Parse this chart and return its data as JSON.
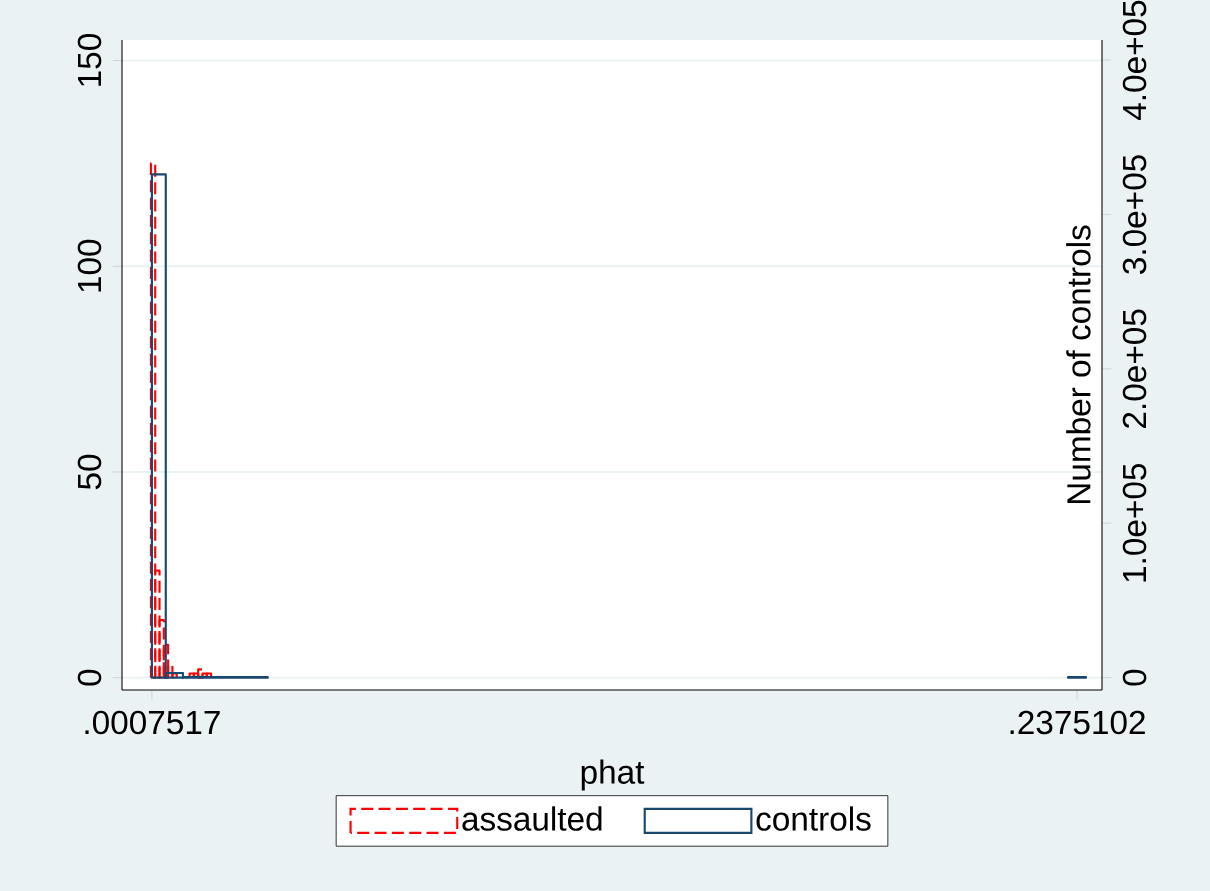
{
  "chart_data": {
    "type": "histogram",
    "xlabel": "phat",
    "y2label": "Number of controls",
    "xlim": [
      -0.0069,
      0.2439
    ],
    "xticks": [
      {
        "value": 0.0007517,
        "label": ".0007517"
      },
      {
        "value": 0.2375102,
        "label": ".2375102"
      }
    ],
    "ylim": [
      -3,
      155
    ],
    "yticks": [
      0,
      50,
      100,
      150
    ],
    "y2lim": [
      -8000,
      413000
    ],
    "y2ticks": [
      0,
      {
        "value": 100000,
        "label": "1.0e+05"
      },
      {
        "value": 200000,
        "label": "2.0e+05"
      },
      {
        "value": 300000,
        "label": "3.0e+05"
      },
      {
        "value": 400000,
        "label": "4.0e+05"
      }
    ],
    "grid": "y",
    "legend": "bottom",
    "bins": [
      0.0005,
      0.0016,
      0.0027,
      0.0038,
      0.0049,
      0.006,
      0.0071,
      0.0082,
      0.0093,
      0.0104,
      0.0115,
      0.0126,
      0.0137,
      0.0148,
      0.0159
    ],
    "series": [
      {
        "name": "assaulted",
        "color": "#ff0000",
        "line_style": "dashed",
        "axis": "y",
        "values": [
          125,
          26,
          14,
          8,
          3,
          1,
          null,
          null,
          null,
          1,
          1,
          2,
          1,
          1
        ]
      },
      {
        "name": "controls",
        "color": "#1a476f",
        "line_style": "solid",
        "axis": "y2",
        "bins": [
          0.0007517,
          0.0043,
          0.0087,
          0.0304,
          0.2352,
          0.2398
        ],
        "values": [
          326000,
          3000,
          300,
          null,
          300
        ]
      }
    ]
  }
}
